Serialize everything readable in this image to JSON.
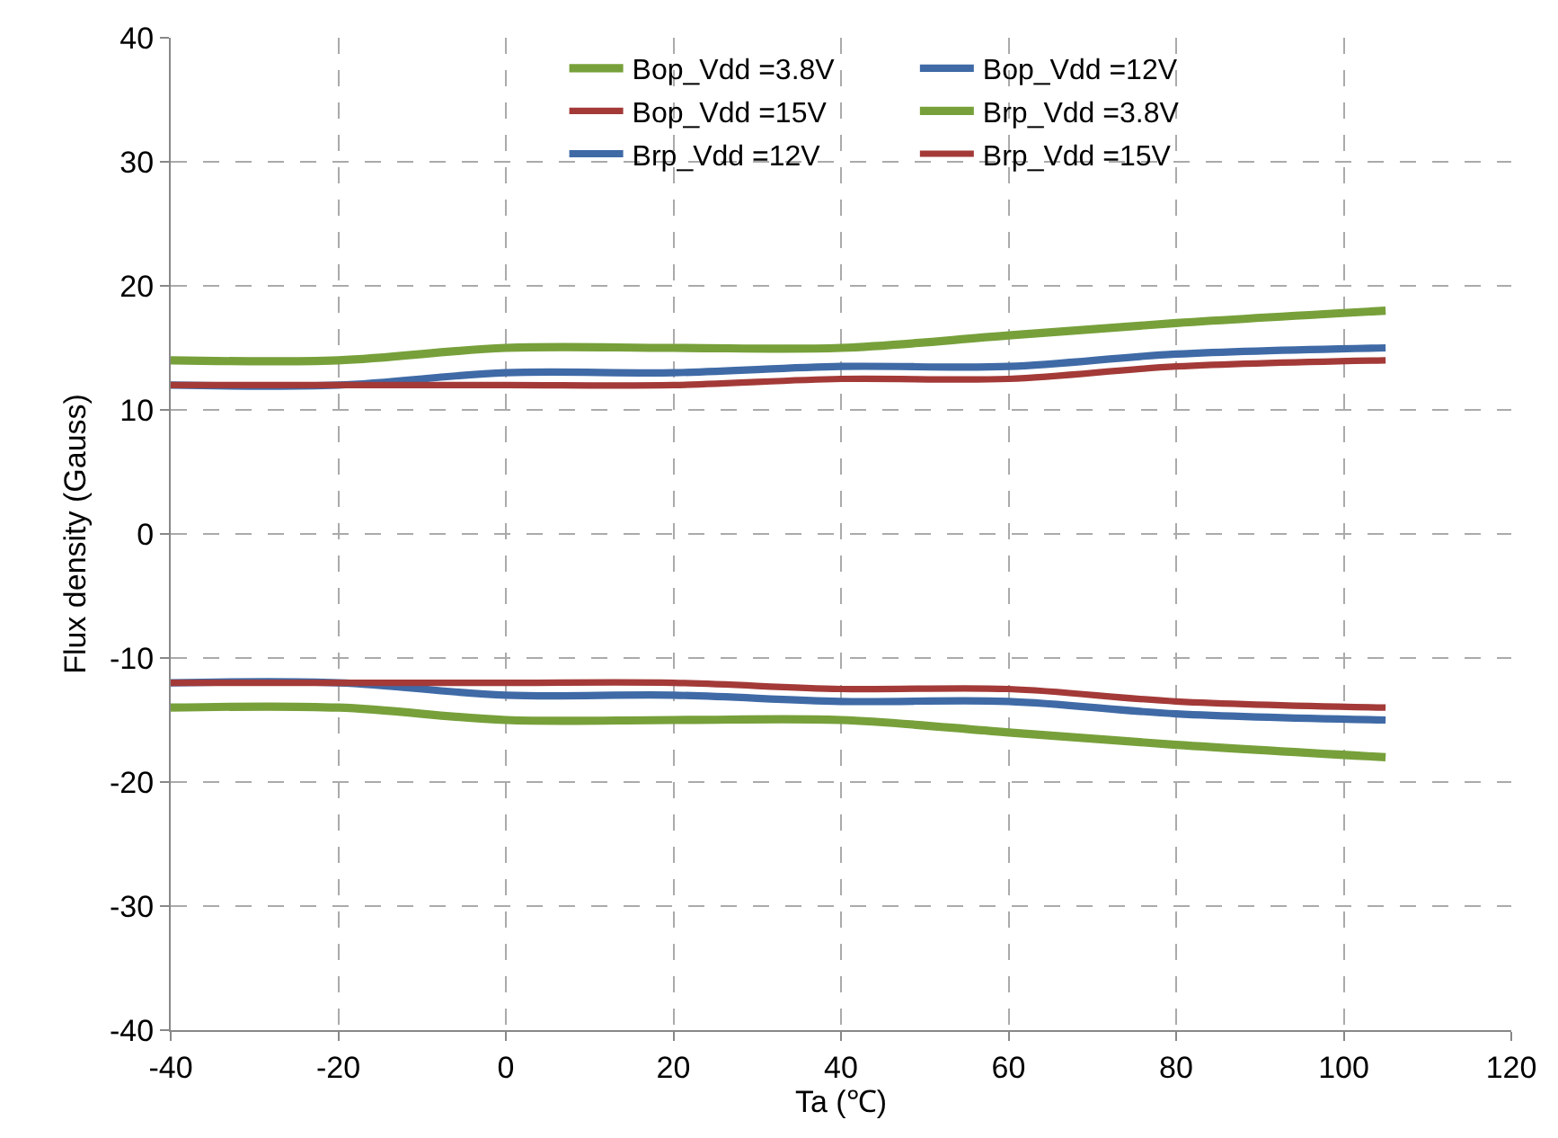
{
  "chart_data": {
    "type": "line",
    "xlabel": "Ta (℃)",
    "ylabel": "Flux density (Gauss)",
    "x": [
      -40,
      -20,
      0,
      20,
      40,
      60,
      80,
      105
    ],
    "series": [
      {
        "name": "Bop_Vdd =3.8V",
        "color": "#77a03a",
        "values": [
          14,
          14,
          15,
          15,
          15,
          16,
          17,
          18
        ]
      },
      {
        "name": "Bop_Vdd =12V",
        "color": "#3f6aa6",
        "values": [
          12,
          12,
          13,
          13,
          13.5,
          13.5,
          14.5,
          15
        ]
      },
      {
        "name": "Bop_Vdd =15V",
        "color": "#a33a38",
        "values": [
          12,
          12,
          12,
          12,
          12.5,
          12.5,
          13.5,
          14
        ]
      },
      {
        "name": "Brp_Vdd =3.8V",
        "color": "#77a03a",
        "values": [
          -14,
          -14,
          -15,
          -15,
          -15,
          -16,
          -17,
          -18
        ]
      },
      {
        "name": "Brp_Vdd =12V",
        "color": "#3f6aa6",
        "values": [
          -12,
          -12,
          -13,
          -13,
          -13.5,
          -13.5,
          -14.5,
          -15
        ]
      },
      {
        "name": "Brp_Vdd =15V",
        "color": "#a33a38",
        "values": [
          -12,
          -12,
          -12,
          -12,
          -12.5,
          -12.5,
          -13.5,
          -14
        ]
      }
    ],
    "xlim": [
      -40,
      120
    ],
    "xticks": [
      -40,
      -20,
      0,
      20,
      40,
      60,
      80,
      100,
      120
    ],
    "ylim": [
      -40,
      40
    ],
    "yticks": [
      -40,
      -30,
      -20,
      -10,
      0,
      10,
      20,
      30,
      40
    ],
    "grid": true,
    "legend": "top right",
    "marker": "none",
    "line_style": "solid"
  }
}
